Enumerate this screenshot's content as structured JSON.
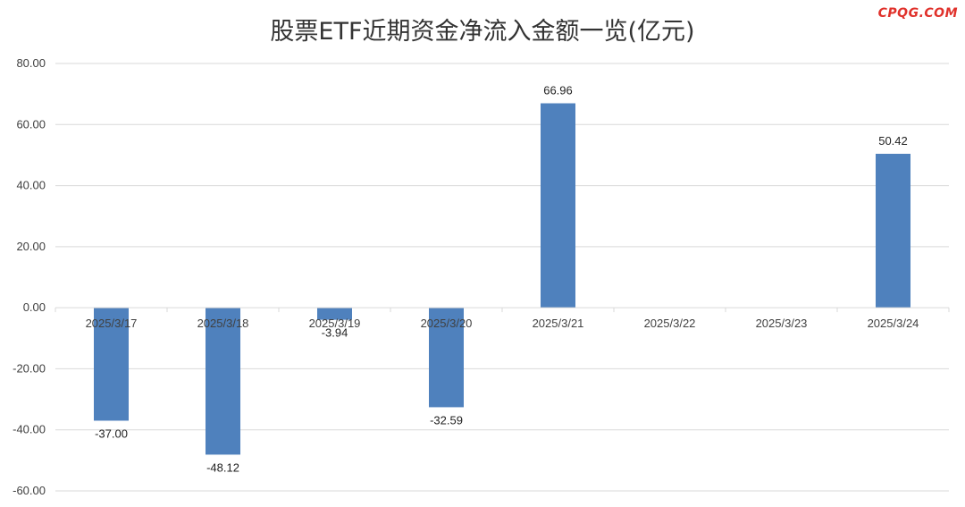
{
  "watermark": "CPQG.COM",
  "colors": {
    "bar": "#4f81bd",
    "grid": "#d9d9d9",
    "text": "#404040",
    "watermark": "#e0312b"
  },
  "chart_data": {
    "type": "bar",
    "title": "股票ETF近期资金净流入金额一览(亿元)",
    "xlabel": "",
    "ylabel": "",
    "categories": [
      "2025/3/17",
      "2025/3/18",
      "2025/3/19",
      "2025/3/20",
      "2025/3/21",
      "2025/3/22",
      "2025/3/23",
      "2025/3/24"
    ],
    "values": [
      -37.0,
      -48.12,
      -3.94,
      -32.59,
      66.96,
      null,
      null,
      50.42
    ],
    "data_labels": [
      "-37.00",
      "-48.12",
      "-3.94",
      "-32.59",
      "66.96",
      "",
      "",
      "50.42"
    ],
    "ylim": [
      -60,
      80
    ],
    "yticks": [
      "80.00",
      "60.00",
      "40.00",
      "20.00",
      "0.00",
      "-20.00",
      "-40.00",
      "-60.00"
    ],
    "ytick_values": [
      80,
      60,
      40,
      20,
      0,
      -20,
      -40,
      -60
    ],
    "grid": true,
    "legend": "none"
  }
}
